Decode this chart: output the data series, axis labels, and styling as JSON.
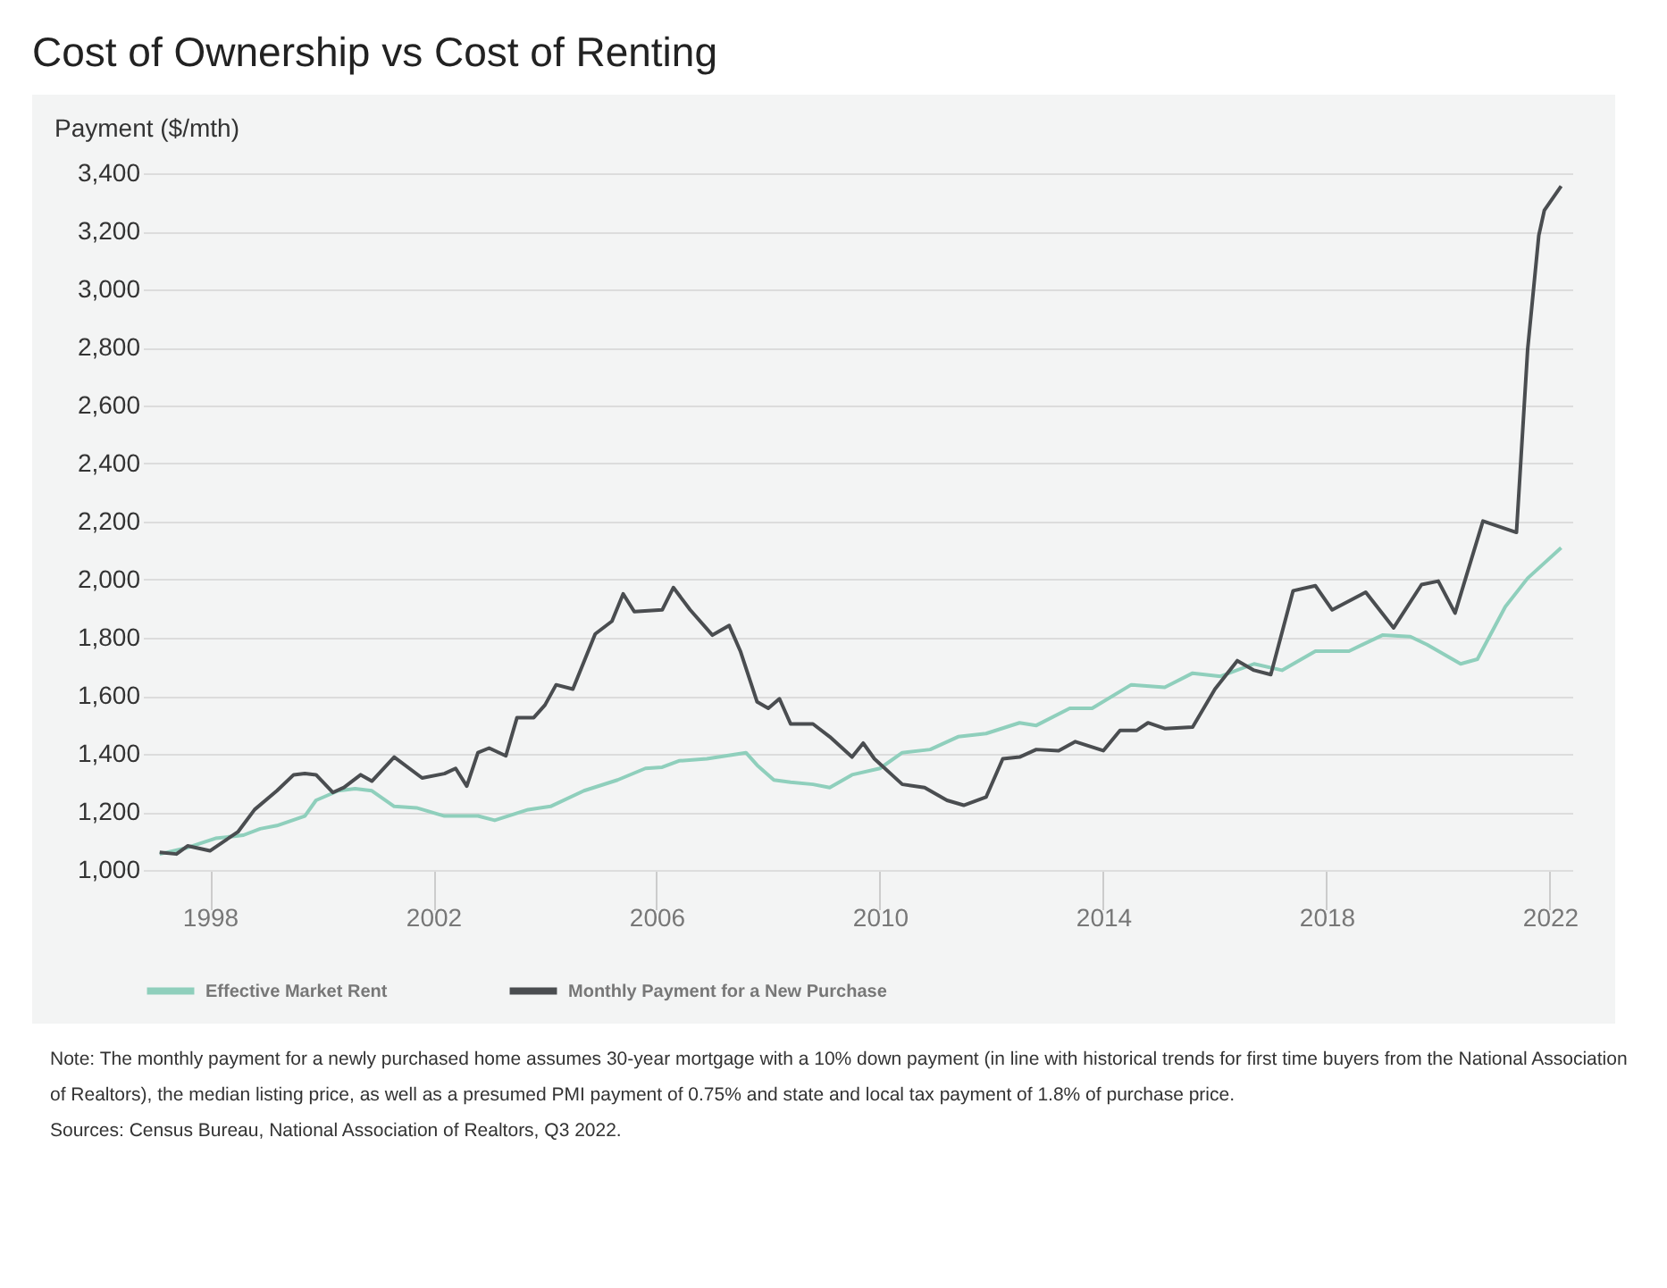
{
  "chart_data": {
    "type": "line",
    "title": "Cost of Ownership vs Cost of Renting",
    "ylabel": "Payment ($/mth)",
    "xlim": [
      1996.8,
      2022.4
    ],
    "xticks": [
      1998,
      2002,
      2006,
      2010,
      2014,
      2018,
      2022
    ],
    "ylim": [
      1000,
      3400
    ],
    "yticks": [
      {
        "value": 1000,
        "label": "1,000"
      },
      {
        "value": 1200,
        "label": "1,200"
      },
      {
        "value": 1400,
        "label": "1,400"
      },
      {
        "value": 1600,
        "label": "1,600"
      },
      {
        "value": 1800,
        "label": "1,800"
      },
      {
        "value": 2000,
        "label": "2,000"
      },
      {
        "value": 2200,
        "label": "2,200"
      },
      {
        "value": 2400,
        "label": "2,400"
      },
      {
        "value": 2600,
        "label": "2,600"
      },
      {
        "value": 2800,
        "label": "2,800"
      },
      {
        "value": 3000,
        "label": "3,000"
      },
      {
        "value": 3200,
        "label": "3,200"
      },
      {
        "value": 3400,
        "label": "3,400"
      }
    ],
    "grid": "y",
    "legend": "bottom",
    "line_style": "solid",
    "marker": "none",
    "series": [
      {
        "name": "Effective Market Rent",
        "color": "#8fcfbc",
        "x": [
          1997.1,
          1997.6,
          1998.1,
          1998.6,
          1998.9,
          1999.2,
          1999.7,
          1999.9,
          2000.3,
          2000.6,
          2000.9,
          2001.3,
          2001.7,
          2002.2,
          2002.8,
          2003.1,
          2003.7,
          2004.1,
          2004.7,
          2005.3,
          2005.8,
          2006.1,
          2006.4,
          2006.9,
          2007.6,
          2007.8,
          2008.1,
          2008.4,
          2008.8,
          2009.1,
          2009.5,
          2010.0,
          2010.4,
          2010.9,
          2011.4,
          2011.9,
          2012.5,
          2012.8,
          2013.4,
          2013.8,
          2014.5,
          2015.1,
          2015.6,
          2016.1,
          2016.7,
          2017.2,
          2017.8,
          2018.4,
          2019.0,
          2019.5,
          2019.8,
          2020.4,
          2020.7,
          2021.2,
          2021.6,
          2022.2
        ],
        "values": [
          1055,
          1077,
          1109,
          1120,
          1142,
          1153,
          1186,
          1240,
          1273,
          1280,
          1273,
          1219,
          1214,
          1186,
          1186,
          1171,
          1208,
          1219,
          1273,
          1310,
          1350,
          1354,
          1376,
          1383,
          1404,
          1361,
          1310,
          1302,
          1295,
          1284,
          1328,
          1350,
          1404,
          1415,
          1459,
          1470,
          1507,
          1498,
          1557,
          1557,
          1638,
          1629,
          1678,
          1667,
          1710,
          1688,
          1754,
          1754,
          1809,
          1804,
          1776,
          1710,
          1726,
          1907,
          2005,
          2110
        ]
      },
      {
        "name": "Monthly Payment for a New Purchase",
        "color": "#4a4d50",
        "x": [
          1997.1,
          1997.4,
          1997.6,
          1998.0,
          1998.5,
          1998.8,
          1999.2,
          1999.5,
          1999.7,
          1999.9,
          2000.2,
          2000.4,
          2000.7,
          2000.9,
          2001.3,
          2001.8,
          2002.2,
          2002.4,
          2002.6,
          2002.8,
          2003.0,
          2003.3,
          2003.5,
          2003.8,
          2004.0,
          2004.2,
          2004.5,
          2004.9,
          2005.2,
          2005.4,
          2005.6,
          2006.1,
          2006.3,
          2006.6,
          2007.0,
          2007.3,
          2007.5,
          2007.8,
          2008.0,
          2008.2,
          2008.4,
          2008.8,
          2009.1,
          2009.5,
          2009.7,
          2009.9,
          2010.4,
          2010.8,
          2011.2,
          2011.5,
          2011.9,
          2012.2,
          2012.5,
          2012.8,
          2013.2,
          2013.5,
          2014.0,
          2014.3,
          2014.6,
          2014.8,
          2015.1,
          2015.6,
          2016.0,
          2016.4,
          2016.7,
          2017.0,
          2017.4,
          2017.8,
          2018.1,
          2018.7,
          2019.2,
          2019.7,
          2020.0,
          2020.3,
          2020.8,
          2021.4,
          2021.6,
          2021.8,
          2021.9,
          2022.2
        ],
        "values": [
          1061,
          1055,
          1083,
          1066,
          1131,
          1208,
          1273,
          1328,
          1332,
          1328,
          1267,
          1284,
          1328,
          1306,
          1389,
          1317,
          1332,
          1350,
          1289,
          1404,
          1420,
          1393,
          1525,
          1525,
          1568,
          1638,
          1623,
          1813,
          1857,
          1951,
          1890,
          1896,
          1973,
          1896,
          1809,
          1842,
          1754,
          1579,
          1557,
          1590,
          1503,
          1503,
          1459,
          1389,
          1437,
          1383,
          1295,
          1284,
          1240,
          1223,
          1251,
          1383,
          1389,
          1415,
          1411,
          1442,
          1411,
          1481,
          1481,
          1507,
          1487,
          1492,
          1623,
          1721,
          1688,
          1673,
          1962,
          1979,
          1896,
          1957,
          1834,
          1983,
          1995,
          1885,
          2202,
          2163,
          2793,
          3186,
          3273,
          3356
        ]
      }
    ],
    "annotations": [
      "Note: The monthly payment for a newly purchased home assumes 30-year mortgage with a 10% down payment (in line with historical trends for first time buyers from the National Association of Realtors), the median listing price, as well as a presumed PMI payment of 0.75% and state and local tax payment of 1.8% of purchase price.",
      "Sources: Census Bureau, National Association of Realtors, Q3 2022."
    ]
  }
}
